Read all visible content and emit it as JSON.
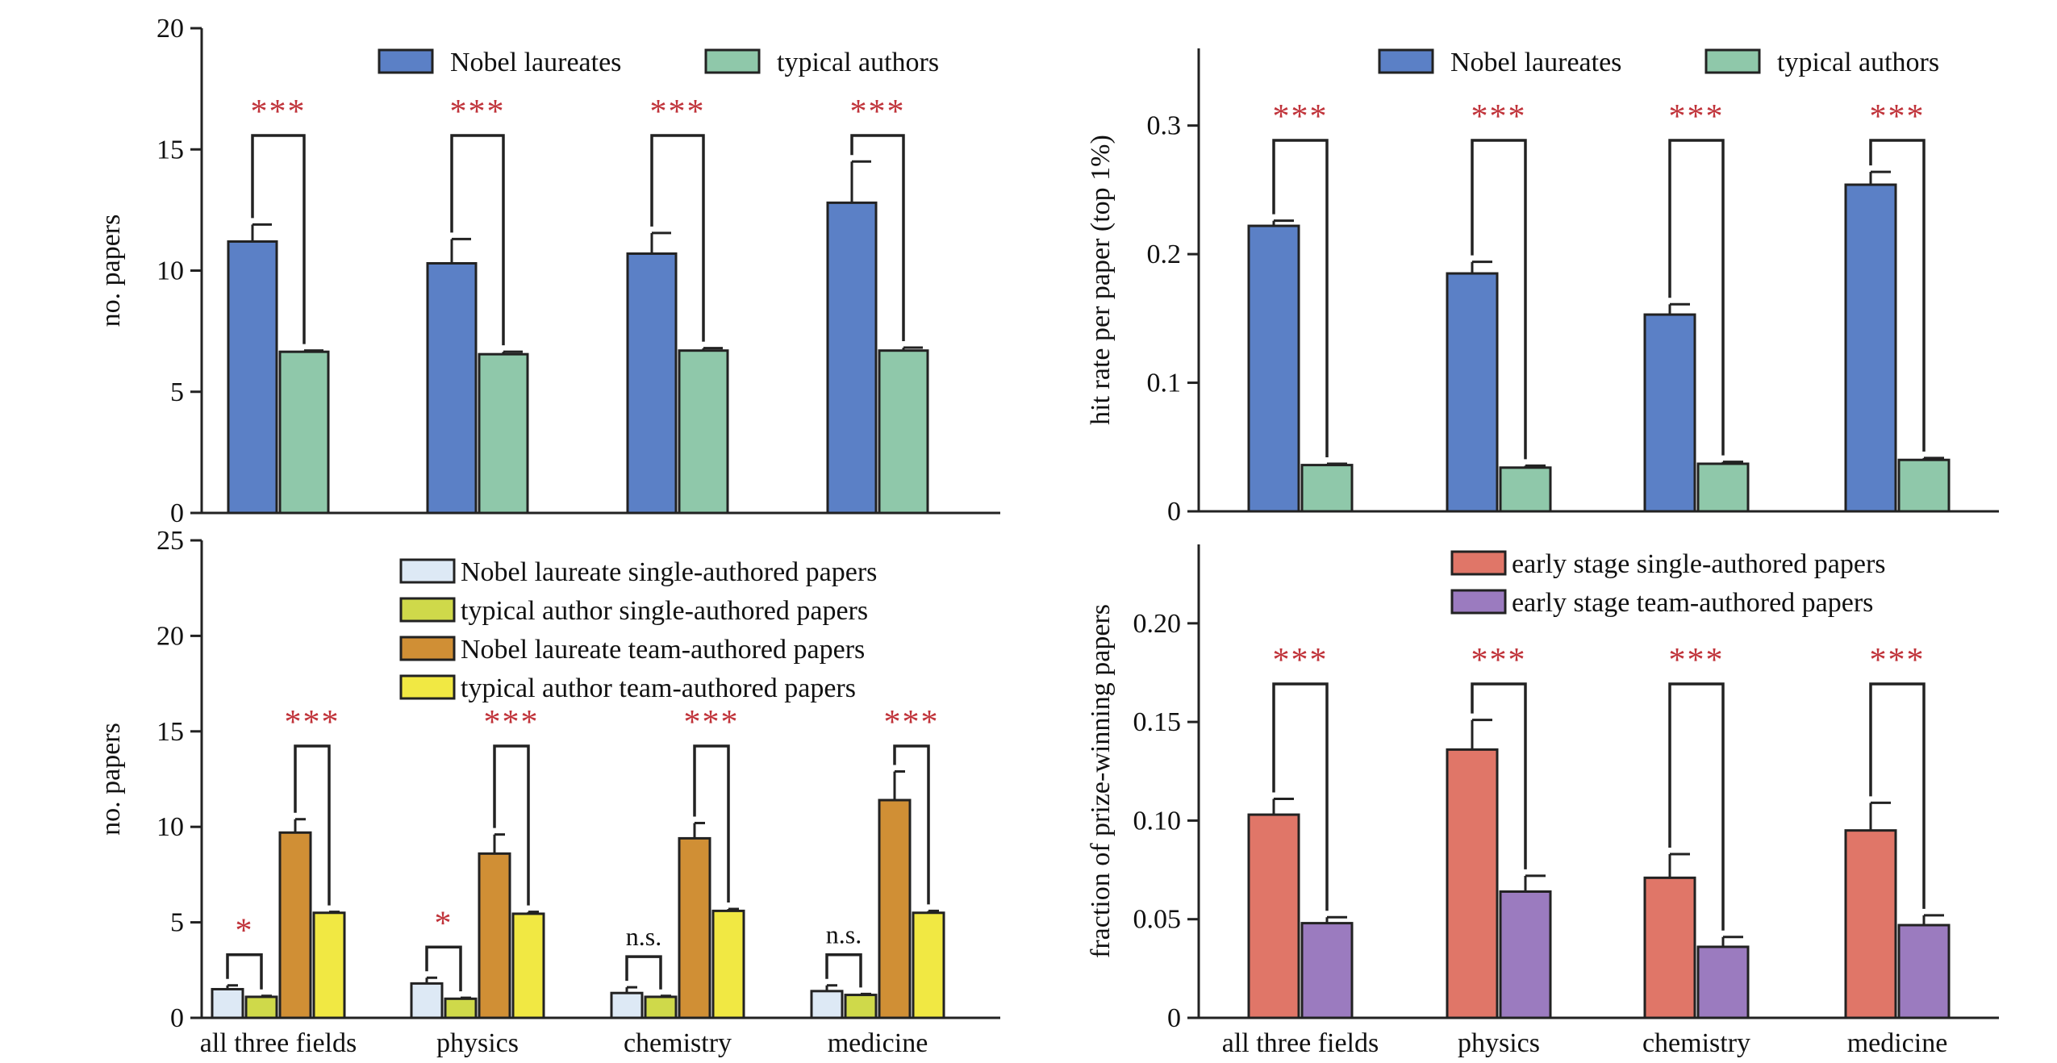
{
  "chart_data": [
    {
      "type": "bar",
      "panel": "top-left",
      "categories": [
        "all three fields",
        "physics",
        "chemistry",
        "medicine"
      ],
      "ylabel": "no. papers",
      "ylim": [
        0,
        20
      ],
      "yticks": [
        0,
        5,
        10,
        15,
        20
      ],
      "legend_position": "top-right",
      "show_category_labels": false,
      "series": [
        {
          "name": "Nobel laureates",
          "color": "#5b80c6",
          "values": [
            11.2,
            10.3,
            10.7,
            12.8
          ],
          "errors": [
            0.7,
            1.0,
            0.85,
            1.7
          ]
        },
        {
          "name": "typical authors",
          "color": "#8fc8aa",
          "values": [
            6.65,
            6.55,
            6.7,
            6.7
          ],
          "errors": [
            0.05,
            0.1,
            0.1,
            0.12
          ]
        }
      ],
      "significance": [
        {
          "pair": [
            0,
            1
          ],
          "label": "***"
        },
        {
          "pair": [
            0,
            1
          ],
          "label": "***"
        },
        {
          "pair": [
            0,
            1
          ],
          "label": "***"
        },
        {
          "pair": [
            0,
            1
          ],
          "label": "***"
        }
      ]
    },
    {
      "type": "bar",
      "panel": "top-right",
      "categories": [
        "all three fields",
        "physics",
        "chemistry",
        "medicine"
      ],
      "ylabel": "hit rate per paper (top 1%)",
      "ylim": [
        0,
        0.36
      ],
      "yticks": [
        0,
        0.1,
        0.2,
        0.3
      ],
      "ytick_labels": [
        "0",
        "0.1",
        "0.2",
        "0.3"
      ],
      "legend_position": "top-right",
      "show_category_labels": false,
      "series": [
        {
          "name": "Nobel laureates",
          "color": "#5b80c6",
          "values": [
            0.222,
            0.185,
            0.153,
            0.254
          ],
          "errors": [
            0.004,
            0.009,
            0.008,
            0.01
          ]
        },
        {
          "name": "typical authors",
          "color": "#8fc8aa",
          "values": [
            0.036,
            0.034,
            0.037,
            0.04
          ],
          "errors": [
            0.001,
            0.0015,
            0.0015,
            0.0015
          ]
        }
      ],
      "significance": [
        {
          "pair": [
            0,
            1
          ],
          "label": "***"
        },
        {
          "pair": [
            0,
            1
          ],
          "label": "***"
        },
        {
          "pair": [
            0,
            1
          ],
          "label": "***"
        },
        {
          "pair": [
            0,
            1
          ],
          "label": "***"
        }
      ]
    },
    {
      "type": "bar",
      "panel": "bottom-left",
      "categories": [
        "all three fields",
        "physics",
        "chemistry",
        "medicine"
      ],
      "ylabel": "no. papers",
      "ylim": [
        0,
        25
      ],
      "yticks": [
        0,
        5,
        10,
        15,
        20,
        25
      ],
      "legend_position": "top-right",
      "show_category_labels": true,
      "series": [
        {
          "name": "Nobel laureate single-authored papers",
          "color": "#dde9f5",
          "values": [
            1.5,
            1.8,
            1.3,
            1.4
          ],
          "errors": [
            0.2,
            0.3,
            0.3,
            0.3
          ]
        },
        {
          "name": "typical author single-authored papers",
          "color": "#cfd94a",
          "values": [
            1.1,
            1.0,
            1.1,
            1.2
          ],
          "errors": [
            0.05,
            0.05,
            0.05,
            0.05
          ]
        },
        {
          "name": "Nobel laureate team-authored papers",
          "color": "#d08f35",
          "values": [
            9.7,
            8.6,
            9.4,
            11.4
          ],
          "errors": [
            0.7,
            1.0,
            0.8,
            1.5
          ]
        },
        {
          "name": "typical author team-authored papers",
          "color": "#f1e843",
          "values": [
            5.5,
            5.45,
            5.6,
            5.5
          ],
          "errors": [
            0.05,
            0.1,
            0.1,
            0.1
          ]
        }
      ],
      "significance": [
        {
          "pair": [
            0,
            1
          ],
          "label": "*"
        },
        {
          "pair": [
            2,
            3
          ],
          "label": "***"
        },
        {
          "pair": [
            0,
            1
          ],
          "label": "*"
        },
        {
          "pair": [
            2,
            3
          ],
          "label": "***"
        },
        {
          "pair": [
            0,
            1
          ],
          "label": "n.s."
        },
        {
          "pair": [
            2,
            3
          ],
          "label": "***"
        },
        {
          "pair": [
            0,
            1
          ],
          "label": "n.s."
        },
        {
          "pair": [
            2,
            3
          ],
          "label": "***"
        }
      ]
    },
    {
      "type": "bar",
      "panel": "bottom-right",
      "categories": [
        "all three fields",
        "physics",
        "chemistry",
        "medicine"
      ],
      "ylabel": "fraction of prize-winning papers",
      "ylim": [
        0,
        0.24
      ],
      "yticks": [
        0,
        0.05,
        0.1,
        0.15,
        0.2
      ],
      "ytick_labels": [
        "0",
        "0.05",
        "0.10",
        "0.15",
        "0.20"
      ],
      "legend_position": "top-right",
      "show_category_labels": true,
      "series": [
        {
          "name": "early stage single-authored papers",
          "color": "#e07668",
          "values": [
            0.103,
            0.136,
            0.071,
            0.095
          ],
          "errors": [
            0.008,
            0.015,
            0.012,
            0.014
          ]
        },
        {
          "name": "early stage team-authored papers",
          "color": "#9b7bbf",
          "values": [
            0.048,
            0.064,
            0.036,
            0.047
          ],
          "errors": [
            0.003,
            0.008,
            0.005,
            0.005
          ]
        }
      ],
      "significance": [
        {
          "pair": [
            0,
            1
          ],
          "label": "***"
        },
        {
          "pair": [
            0,
            1
          ],
          "label": "***"
        },
        {
          "pair": [
            0,
            1
          ],
          "label": "***"
        },
        {
          "pair": [
            0,
            1
          ],
          "label": "***"
        }
      ]
    }
  ]
}
